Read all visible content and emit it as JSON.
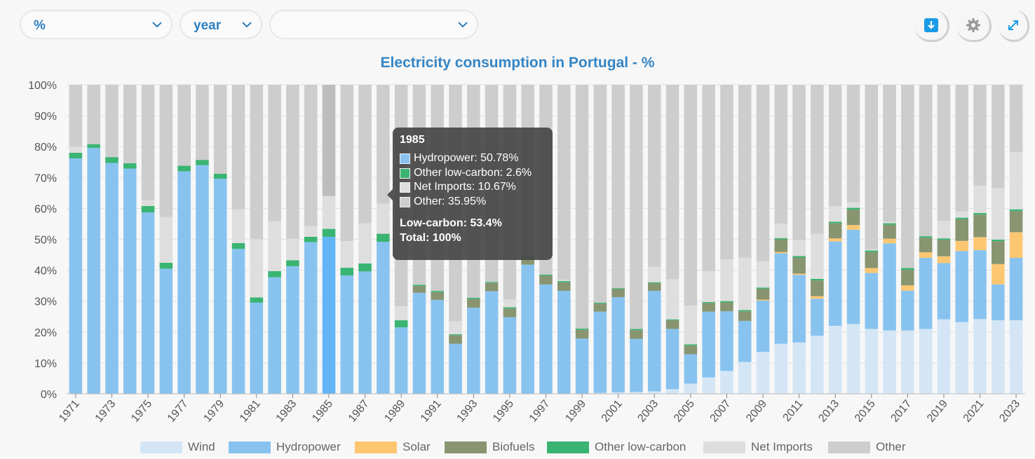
{
  "controls": {
    "unit_select": "%",
    "period_select": "year",
    "extra_select": ""
  },
  "buttons": {
    "download_icon": "download-icon",
    "settings_icon": "gear-icon",
    "expand_icon": "expand-icon"
  },
  "colors": {
    "Wind": "#d4e6f6",
    "Hydropower": "#88c3f0",
    "Solar": "#fdc772",
    "Biofuels": "#889570",
    "Other low-carbon": "#3ab472",
    "Net Imports": "#dedede",
    "Other": "#cdcdcd",
    "highlight_hydro": "#63b5f7",
    "title": "#3585c4"
  },
  "tooltip": {
    "year": "1985",
    "rows": [
      {
        "label": "Hydropower: 50.78%",
        "color": "#88c3f0"
      },
      {
        "label": "Other low-carbon: 2.6%",
        "color": "#3ab472"
      },
      {
        "label": "Net Imports: 10.67%",
        "color": "#dedede"
      },
      {
        "label": "Other: 35.95%",
        "color": "#cdcdcd"
      }
    ],
    "low_carbon": "Low-carbon: 53.4%",
    "total": "Total: 100%"
  },
  "chart_data": {
    "type": "bar",
    "stacked": true,
    "title": "Electricity consumption in Portugal - %",
    "xlabel": "",
    "ylabel": "",
    "ylim": [
      0,
      100
    ],
    "yticks": [
      "0%",
      "10%",
      "20%",
      "30%",
      "40%",
      "50%",
      "60%",
      "70%",
      "80%",
      "90%",
      "100%"
    ],
    "grid": true,
    "legend_position": "bottom",
    "highlighted_category": "1985",
    "categories": [
      "1971",
      "1972",
      "1973",
      "1974",
      "1975",
      "1976",
      "1977",
      "1978",
      "1979",
      "1980",
      "1981",
      "1982",
      "1983",
      "1984",
      "1985",
      "1986",
      "1987",
      "1988",
      "1989",
      "1990",
      "1991",
      "1992",
      "1993",
      "1994",
      "1995",
      "1996",
      "1997",
      "1998",
      "1999",
      "2000",
      "2001",
      "2002",
      "2003",
      "2004",
      "2005",
      "2006",
      "2007",
      "2008",
      "2009",
      "2010",
      "2011",
      "2012",
      "2013",
      "2014",
      "2015",
      "2016",
      "2017",
      "2018",
      "2019",
      "2020",
      "2021",
      "2022",
      "2023"
    ],
    "series": [
      {
        "name": "Wind",
        "values": [
          0,
          0,
          0,
          0,
          0,
          0,
          0,
          0,
          0,
          0,
          0,
          0,
          0,
          0,
          0,
          0,
          0,
          0,
          0,
          0,
          0,
          0,
          0,
          0,
          0,
          0,
          0,
          0,
          0,
          0.3,
          0.5,
          0.6,
          0.8,
          1.5,
          3.3,
          5.3,
          7.4,
          10.3,
          13.6,
          16.2,
          16.6,
          18.8,
          22,
          22.6,
          21,
          20.5,
          20.5,
          21,
          24.1,
          23.2,
          24.2,
          23.8,
          23.8
        ]
      },
      {
        "name": "Hydropower",
        "values": [
          76.2,
          79.6,
          74.7,
          72.9,
          58.7,
          40.5,
          72,
          74,
          69.6,
          46.9,
          29.5,
          37.7,
          41.3,
          49.1,
          50.78,
          38.3,
          39.6,
          49.2,
          21.5,
          32.7,
          30.4,
          16.2,
          27.9,
          33.2,
          24.8,
          41.8,
          35.4,
          33.3,
          17.9,
          26.3,
          30.8,
          17.2,
          32.5,
          19.5,
          9.5,
          21.3,
          19.3,
          13.3,
          16.6,
          29.3,
          21.9,
          12,
          27.3,
          30.5,
          18.1,
          28.2,
          12.9,
          23,
          18.2,
          23,
          22.3,
          11.6,
          20.2
        ]
      },
      {
        "name": "Solar",
        "values": [
          0,
          0,
          0,
          0,
          0,
          0,
          0,
          0,
          0,
          0,
          0,
          0,
          0,
          0,
          0,
          0,
          0,
          0,
          0,
          0,
          0,
          0,
          0,
          0,
          0,
          0,
          0,
          0,
          0,
          0,
          0,
          0,
          0,
          0,
          0,
          0,
          0,
          0,
          0.3,
          0.4,
          0.4,
          0.8,
          1,
          1.5,
          1.6,
          1.5,
          1.7,
          1.8,
          2.2,
          3.3,
          4.2,
          6.6,
          8.3
        ]
      },
      {
        "name": "Biofuels",
        "values": [
          0,
          0,
          0,
          0,
          0,
          0,
          0,
          0,
          0,
          0,
          0,
          0,
          0,
          0,
          0,
          0,
          0,
          0,
          0,
          2.2,
          2.5,
          2.8,
          2.8,
          2.7,
          2.8,
          2.6,
          2.8,
          2.8,
          2.8,
          2.6,
          2.6,
          2.8,
          2.5,
          2.8,
          2.8,
          2.8,
          2.9,
          3.1,
          3.5,
          4.1,
          5.2,
          5.1,
          4.9,
          5,
          5.2,
          4.5,
          5,
          4.7,
          5.3,
          7,
          7.3,
          7.4,
          6.8
        ]
      },
      {
        "name": "Other low-carbon",
        "values": [
          1.8,
          1.2,
          1.9,
          1.7,
          2.1,
          1.9,
          1.8,
          1.7,
          1.6,
          1.9,
          1.7,
          2,
          1.9,
          1.7,
          2.6,
          2.5,
          2.6,
          2.6,
          2.3,
          0.4,
          0.4,
          0.3,
          0.4,
          0.3,
          0.4,
          0.3,
          0.4,
          0.4,
          0.4,
          0.3,
          0.3,
          0.4,
          0.3,
          0.3,
          0.4,
          0.3,
          0.4,
          0.4,
          0.4,
          0.4,
          0.5,
          0.5,
          0.5,
          0.6,
          0.5,
          0.5,
          0.6,
          0.5,
          0.5,
          0.5,
          0.5,
          0.5,
          0.6
        ]
      },
      {
        "name": "Net Imports",
        "values": [
          2,
          0,
          0,
          0,
          1.8,
          14.8,
          0,
          0,
          0,
          10.9,
          18.8,
          16.2,
          7,
          3.5,
          10.67,
          8.6,
          13,
          9.7,
          4.5,
          0,
          0,
          4.2,
          0,
          0,
          2.5,
          0,
          0,
          0.4,
          0,
          0,
          0,
          0,
          5,
          13,
          12.5,
          10,
          13.5,
          17,
          8.5,
          4.7,
          5.1,
          14.6,
          5,
          1.8,
          0.4,
          0.5,
          0,
          0,
          5.7,
          2,
          8.8,
          16.6,
          18.5
        ]
      },
      {
        "name": "Other",
        "values": [
          20,
          19.2,
          23.4,
          25.4,
          37.4,
          42.8,
          26.2,
          24.3,
          28.8,
          40.3,
          50,
          44.1,
          49.8,
          45.7,
          35.95,
          50.6,
          44.8,
          38.5,
          71.7,
          64.7,
          66.7,
          76.5,
          68.9,
          63.8,
          69.5,
          55.3,
          61.4,
          63.1,
          78.9,
          70.5,
          65.8,
          79,
          58.9,
          62.9,
          71.5,
          60.3,
          56.5,
          55.9,
          57.1,
          44.9,
          50.3,
          48.2,
          39.3,
          38,
          53.2,
          44.8,
          59.3,
          49,
          44,
          41,
          32.7,
          33.5,
          21.8
        ]
      }
    ]
  }
}
